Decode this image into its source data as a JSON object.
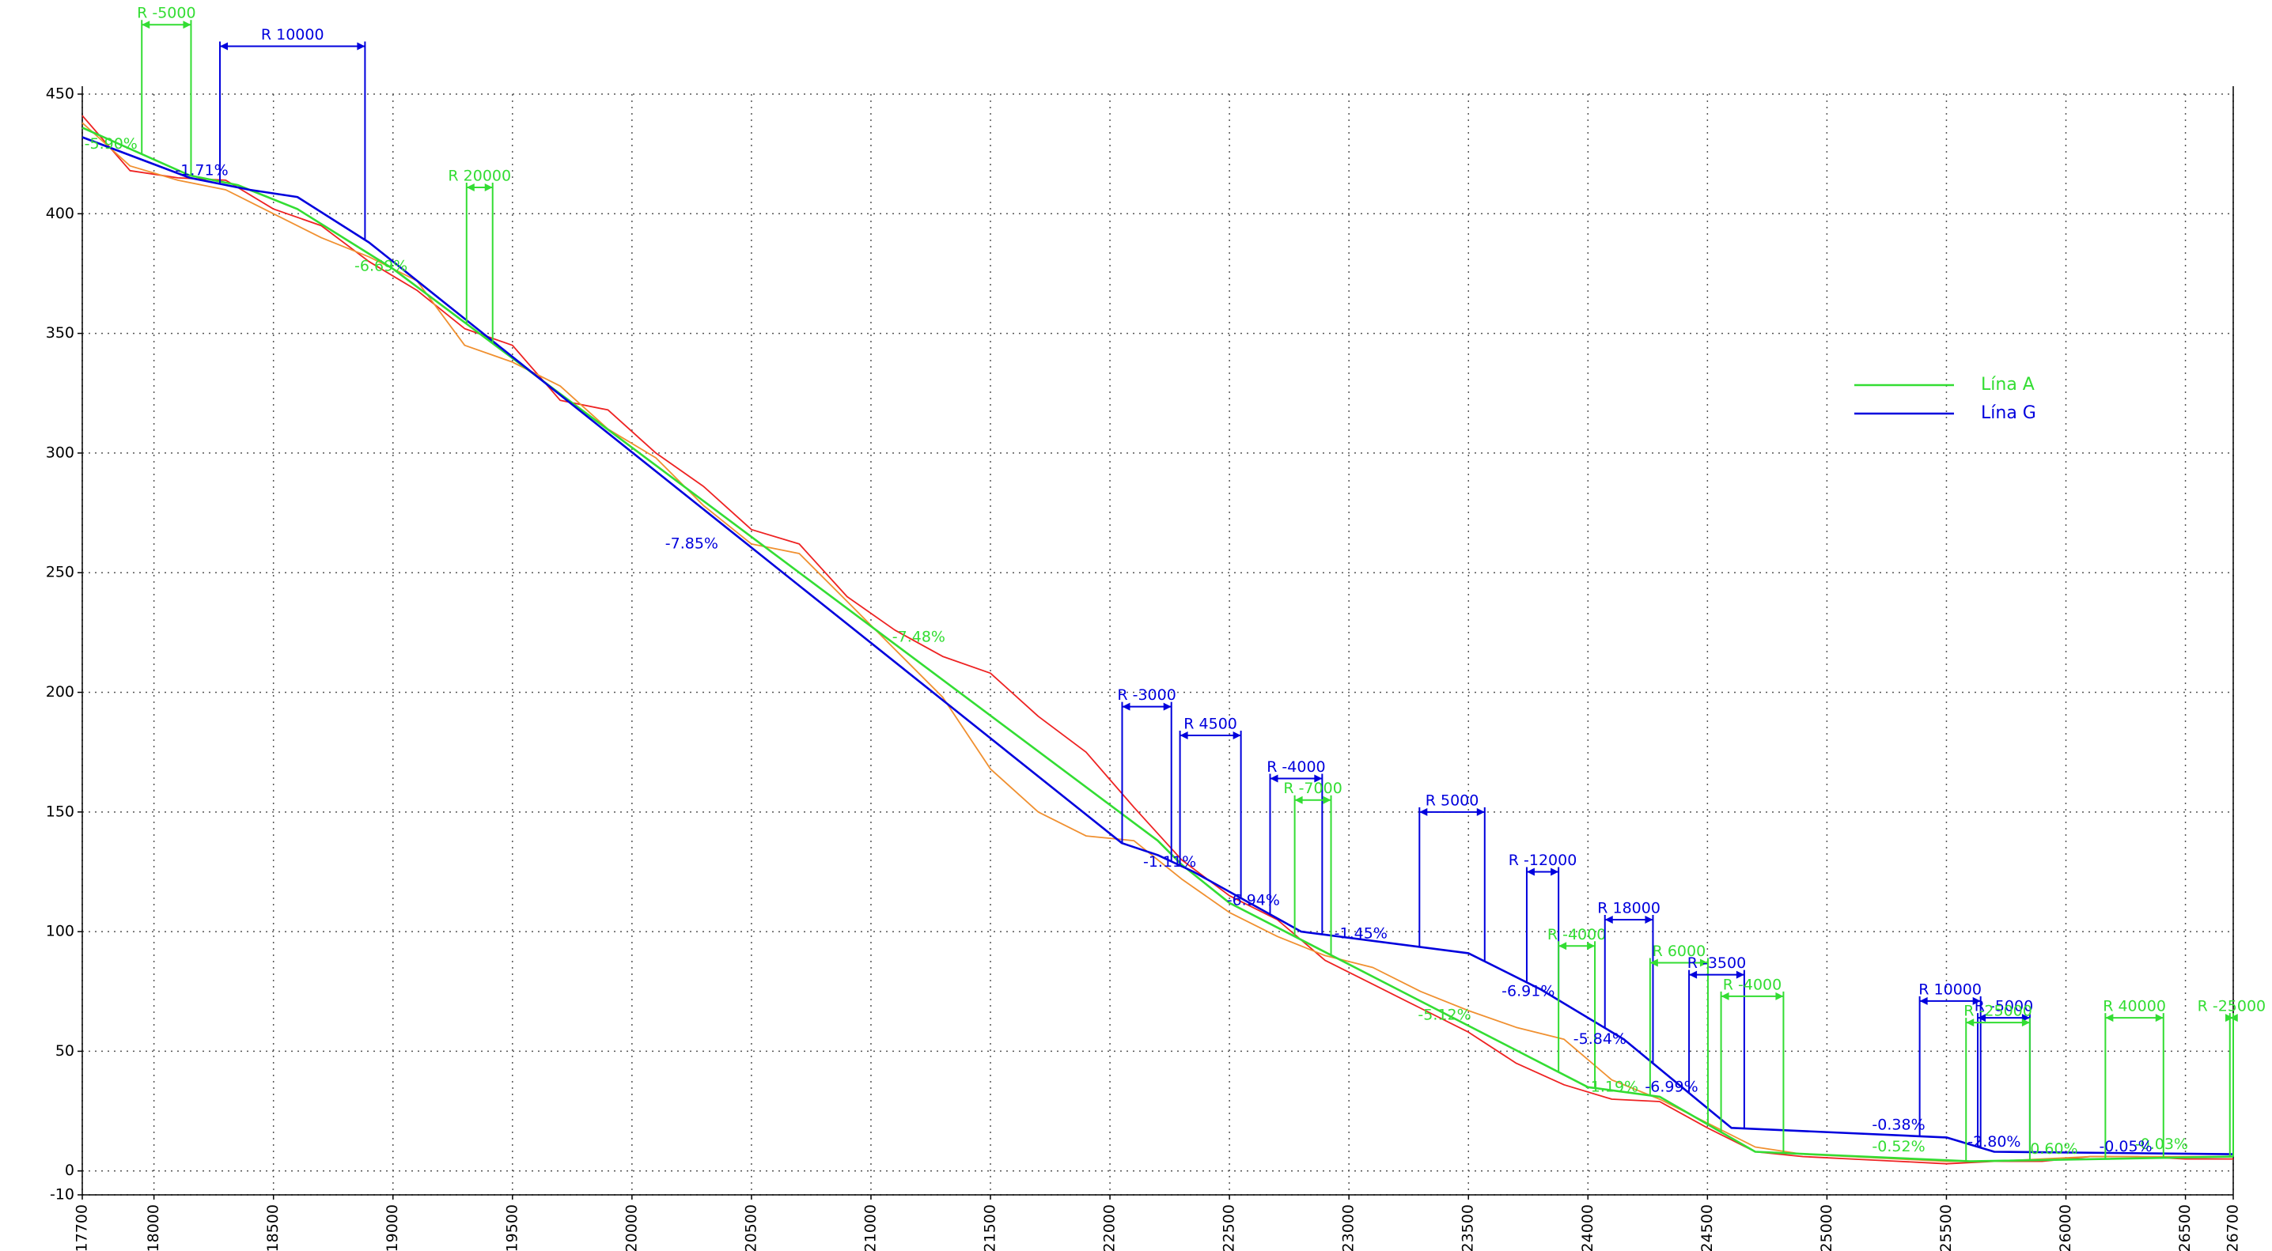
{
  "chart_data": {
    "type": "line",
    "xlim": [
      17700,
      26700
    ],
    "ylim": [
      -10,
      450
    ],
    "xticks": [
      17700,
      18000,
      18500,
      19000,
      19500,
      20000,
      20500,
      21000,
      21500,
      22000,
      22500,
      23000,
      23500,
      24000,
      24500,
      25000,
      25500,
      26000,
      26500,
      26700
    ],
    "yticks": [
      -10,
      0,
      50,
      100,
      150,
      200,
      250,
      300,
      350,
      400,
      450
    ],
    "grid": true,
    "legend": "right",
    "series": [
      {
        "color": "#ee2222",
        "x": [
          17700,
          17900,
          18100,
          18300,
          18500,
          18700,
          18900,
          19100,
          19300,
          19500,
          19700,
          19900,
          20100,
          20300,
          20500,
          20700,
          20900,
          21100,
          21300,
          21500,
          21700,
          21900,
          22100,
          22300,
          22500,
          22700,
          22900,
          23100,
          23300,
          23500,
          23700,
          23900,
          24100,
          24300,
          24500,
          24700,
          24900,
          25100,
          25300,
          25500,
          25700,
          25900,
          26100,
          26300,
          26500,
          26700
        ],
        "values": [
          441,
          418,
          415,
          414,
          402,
          395,
          380,
          368,
          352,
          345,
          322,
          318,
          300,
          286,
          268,
          262,
          240,
          226,
          215,
          208,
          190,
          175,
          152,
          130,
          115,
          105,
          88,
          78,
          68,
          58,
          45,
          36,
          30,
          29,
          18,
          8,
          6,
          5,
          4,
          3,
          4,
          4,
          6,
          6,
          5,
          5
        ]
      },
      {
        "color": "#f09030",
        "x": [
          17700,
          17900,
          18100,
          18300,
          18500,
          18700,
          18900,
          19100,
          19300,
          19500,
          19700,
          19900,
          20100,
          20300,
          20500,
          20700,
          20900,
          21100,
          21300,
          21500,
          21700,
          21900,
          22100,
          22300,
          22500,
          22700,
          22900,
          23100,
          23300,
          23500,
          23700,
          23900,
          24100,
          24300,
          24500,
          24700,
          24900,
          25100,
          25300,
          25500,
          25700,
          25900,
          26100,
          26300,
          26500,
          26700
        ],
        "values": [
          438,
          420,
          414,
          410,
          400,
          390,
          382,
          372,
          345,
          338,
          328,
          310,
          298,
          278,
          262,
          258,
          238,
          218,
          198,
          168,
          150,
          140,
          138,
          122,
          108,
          98,
          90,
          85,
          75,
          67,
          60,
          55,
          38,
          30,
          20,
          10,
          7,
          6,
          5,
          4,
          4,
          5,
          6,
          6,
          6,
          6
        ]
      },
      {
        "name": "Lína A",
        "color": "#33dd33",
        "x": [
          17700,
          18150,
          18350,
          18600,
          19000,
          22200,
          22300,
          22500,
          24000,
          24300,
          24700,
          25600,
          26700
        ],
        "values": [
          436,
          416,
          412,
          402,
          377,
          138,
          128,
          112,
          35,
          31,
          8,
          4,
          6
        ]
      },
      {
        "name": "Lína G",
        "color": "#0000dd",
        "x": [
          17700,
          18150,
          18400,
          18600,
          18900,
          22050,
          22200,
          22350,
          22800,
          23500,
          23800,
          24150,
          24600,
          25500,
          25700,
          26700
        ],
        "values": [
          432,
          415,
          410,
          407,
          388,
          137,
          132,
          125,
          100,
          91,
          76,
          55,
          18,
          14,
          8,
          7
        ]
      }
    ],
    "slope_labels": [
      {
        "text": "-5.90%",
        "x": 17820,
        "y": 429,
        "color": "#33dd33"
      },
      {
        "text": "-1.71%",
        "x": 18200,
        "y": 418,
        "color": "#0000dd"
      },
      {
        "text": "-6.69%",
        "x": 18950,
        "y": 378,
        "color": "#33dd33"
      },
      {
        "text": "-7.48%",
        "x": 21200,
        "y": 223,
        "color": "#33dd33"
      },
      {
        "text": "-5.12%",
        "x": 23400,
        "y": 65,
        "color": "#33dd33"
      },
      {
        "text": "-1.19%",
        "x": 24100,
        "y": 35,
        "color": "#33dd33"
      },
      {
        "text": "-0.52%",
        "x": 25300,
        "y": 10,
        "color": "#33dd33"
      },
      {
        "text": "0.60%",
        "x": 25950,
        "y": 9,
        "color": "#33dd33"
      },
      {
        "text": "-0.03%",
        "x": 26400,
        "y": 11,
        "color": "#33dd33"
      },
      {
        "text": "-7.85%",
        "x": 20250,
        "y": 262,
        "color": "#0000dd"
      },
      {
        "text": "-1.11%",
        "x": 22250,
        "y": 129,
        "color": "#0000dd"
      },
      {
        "text": "-6.94%",
        "x": 22600,
        "y": 113,
        "color": "#0000dd"
      },
      {
        "text": "-1.45%",
        "x": 23050,
        "y": 99,
        "color": "#0000dd"
      },
      {
        "text": "-6.91%",
        "x": 23750,
        "y": 75,
        "color": "#0000dd"
      },
      {
        "text": "-5.84%",
        "x": 24050,
        "y": 55,
        "color": "#0000dd"
      },
      {
        "text": "-6.99%",
        "x": 24350,
        "y": 35,
        "color": "#0000dd"
      },
      {
        "text": "-0.38%",
        "x": 25300,
        "y": 19,
        "color": "#0000dd"
      },
      {
        "text": "-2.80%",
        "x": 25700,
        "y": 12,
        "color": "#0000dd"
      },
      {
        "text": "-0.05%",
        "x": 26250,
        "y": 10,
        "color": "#0000dd"
      }
    ],
    "curve_labels": [
      {
        "text": "R -5000",
        "x1": 17949,
        "x2": 18155,
        "y": 479,
        "color": "#33dd33"
      },
      {
        "text": "R 10000",
        "x1": 18276,
        "x2": 18883,
        "y": 470,
        "color": "#0000dd"
      },
      {
        "text": "R 20000",
        "x1": 19308,
        "x2": 19417,
        "y": 411,
        "color": "#33dd33"
      },
      {
        "text": "R -3000",
        "x1": 22051,
        "x2": 22257,
        "y": 194,
        "color": "#0000dd"
      },
      {
        "text": "R 4500",
        "x1": 22293,
        "x2": 22548,
        "y": 182,
        "color": "#0000dd"
      },
      {
        "text": "R -4000",
        "x1": 22670,
        "x2": 22888,
        "y": 164,
        "color": "#0000dd"
      },
      {
        "text": "R -7000",
        "x1": 22773,
        "x2": 22925,
        "y": 155,
        "color": "#33dd33"
      },
      {
        "text": "R 5000",
        "x1": 23295,
        "x2": 23568,
        "y": 150,
        "color": "#0000dd"
      },
      {
        "text": "R -12000",
        "x1": 23744,
        "x2": 23877,
        "y": 125,
        "color": "#0000dd"
      },
      {
        "text": "R -4000",
        "x1": 23877,
        "x2": 24029,
        "y": 94,
        "color": "#33dd33"
      },
      {
        "text": "R 18000",
        "x1": 24071,
        "x2": 24272,
        "y": 105,
        "color": "#0000dd"
      },
      {
        "text": "R 6000",
        "x1": 24260,
        "x2": 24502,
        "y": 87,
        "color": "#33dd33"
      },
      {
        "text": "R -3500",
        "x1": 24423,
        "x2": 24654,
        "y": 82,
        "color": "#0000dd"
      },
      {
        "text": "R -4000",
        "x1": 24557,
        "x2": 24818,
        "y": 73,
        "color": "#33dd33"
      },
      {
        "text": "R 10000",
        "x1": 25388,
        "x2": 25643,
        "y": 71,
        "color": "#0000dd"
      },
      {
        "text": "R -5000",
        "x1": 25631,
        "x2": 25849,
        "y": 64,
        "color": "#0000dd"
      },
      {
        "text": "R -25000",
        "x1": 25582,
        "x2": 25849,
        "y": 62,
        "color": "#33dd33"
      },
      {
        "text": "R 40000",
        "x1": 26165,
        "x2": 26408,
        "y": 64,
        "color": "#33dd33"
      },
      {
        "text": "R -25000",
        "x1": 26686,
        "x2": 26700,
        "y": 64,
        "color": "#33dd33"
      }
    ]
  }
}
